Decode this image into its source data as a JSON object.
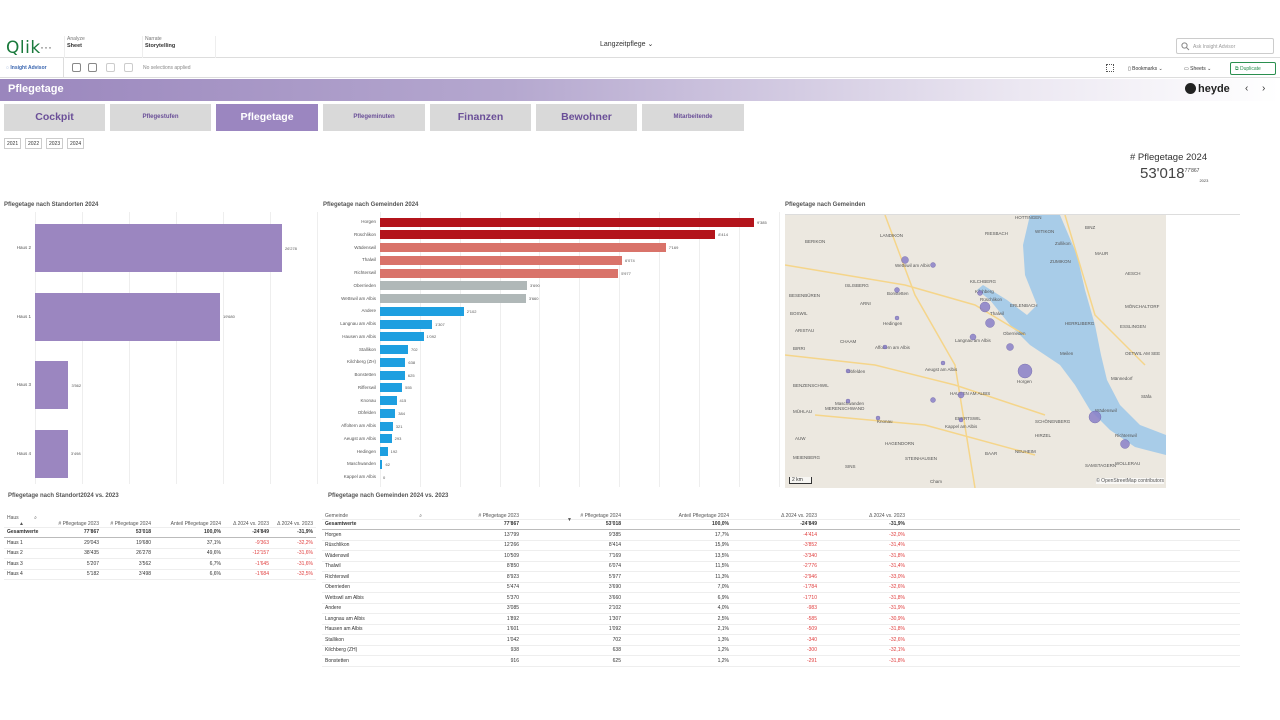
{
  "topbar": {
    "logo": "Qlik",
    "more": "···",
    "tab1_top": "Analyze",
    "tab1_bottom": "Sheet",
    "tab2_top": "Narrate",
    "tab2_bottom": "Storytelling",
    "app_title": "Langzeitpflege",
    "search_placeholder": "Ask Insight Advisor"
  },
  "toolbar": {
    "insight_advisor": "Insight Advisor",
    "no_selections": "No selections applied",
    "bookmarks": "Bookmarks",
    "sheets": "Sheets",
    "duplicate": "Duplicate"
  },
  "sheet": {
    "title": "Pflegetage",
    "brand": "heyde"
  },
  "nav": [
    "Cockpit",
    "Pflegestufen",
    "Pflegetage",
    "Pflegeminuten",
    "Finanzen",
    "Bewohner",
    "Mitarbeitende"
  ],
  "years": [
    "2021",
    "2022",
    "2023",
    "2024"
  ],
  "kpi": {
    "title": "# Pflegetage 2024",
    "value": "53'018",
    "prev": "77'867",
    "prev_year": "2023"
  },
  "chart_data": [
    {
      "type": "bar",
      "title": "Pflegetage nach Standorten 2024",
      "categories": [
        "Haus 2",
        "Haus 1",
        "Haus 3",
        "Haus 4"
      ],
      "values": [
        26278,
        19680,
        3562,
        3498
      ],
      "labels": [
        "26'278",
        "19'680",
        "3'562",
        "3'498"
      ],
      "color": "#9b86c0"
    },
    {
      "type": "bar",
      "title": "Pflegetage nach Gemeinden 2024",
      "categories": [
        "Horgen",
        "Rüschlikon",
        "Wädenswil",
        "Thalwil",
        "Richterswil",
        "Oberrieden",
        "Wettswil am Albis",
        "Andere",
        "Langnau am Albis",
        "Hausen am Albis",
        "Stallikon",
        "Kilchberg (ZH)",
        "Bonstetten",
        "Rifferswil",
        "Knonau",
        "Obfelden",
        "Affoltern am Albis",
        "Aeugst am Albis",
        "Hedingen",
        "Maschwanden",
        "Kappel am Albis"
      ],
      "values": [
        9385,
        8414,
        7169,
        6074,
        5977,
        3690,
        3660,
        2102,
        1307,
        1092,
        702,
        638,
        625,
        555,
        415,
        384,
        321,
        293,
        192,
        62,
        0
      ],
      "labels": [
        "9'385",
        "8'414",
        "7'169",
        "6'074",
        "5'977",
        "3'690",
        "3'660",
        "2'102",
        "1'307",
        "1'092",
        "702",
        "638",
        "625",
        "555",
        "415",
        "384",
        "321",
        "293",
        "192",
        "62",
        "0"
      ],
      "colors": [
        "#b3141b",
        "#b3141b",
        "#d9736a",
        "#d9736a",
        "#d9736a",
        "#b0b8b8",
        "#b0b8b8",
        "#1e9fe0",
        "#1e9fe0",
        "#1e9fe0",
        "#1e9fe0",
        "#1e9fe0",
        "#1e9fe0",
        "#1e9fe0",
        "#1e9fe0",
        "#1e9fe0",
        "#1e9fe0",
        "#1e9fe0",
        "#1e9fe0",
        "#1e9fe0",
        "#1e9fe0"
      ]
    }
  ],
  "map": {
    "title": "Pflegetage nach Gemeinden",
    "scale": "2 km",
    "attribution": "© OpenStreetMap contributors",
    "labels": [
      "HOTTINGEN",
      "RIESBACH",
      "WITIKON",
      "BINZ",
      "BERIKON",
      "LANDIKON",
      "ISLISBERG",
      "ARNI",
      "Zollikon",
      "ZUMIKON",
      "KILCHBERG",
      "Kilchberg",
      "Rüschlikon",
      "Thalwil",
      "Oberrieden",
      "Horgen",
      "Meilen",
      "ERLENBACH",
      "HERRLIBERG",
      "Wädenswil",
      "Richterswil",
      "Bonstetten",
      "Affoltern am Albis",
      "Hedingen",
      "Obfelden",
      "Aeugst am Albis",
      "Maschwanden",
      "Knonau",
      "Kappel am Albis",
      "Wettswil am Albis",
      "Langnau am Albis",
      "HIRZEL",
      "SCHÖNENBERG",
      "SAMSTAGERN",
      "WOLLERAU",
      "NEUHEIM",
      "BAAR",
      "Cham",
      "STEINHAUSEN",
      "EBERTSWIL",
      "HAUSEN AM ALBIS",
      "MAUR",
      "AESCH",
      "MÖNCHALTORF",
      "ESSLINGEN",
      "OETWIL AM SEE",
      "Männedorf",
      "Stäfa",
      "HAGENDORN",
      "MEIENBERG",
      "AUW",
      "SINS",
      "MÜHLAU",
      "BENZENSCHWIL",
      "MERENSCHWAND",
      "CHAAM",
      "BIRRI",
      "ARISTAU",
      "BESENBÜREN",
      "BOSWIL"
    ]
  },
  "table1": {
    "title": "Pflegetage nach Standort2024 vs. 2023",
    "headers": [
      "Haus",
      "# Pflegetage 2023",
      "# Pflegetage 2024",
      "Anteil Pflegetage 2024",
      "Δ 2024 vs. 2023",
      "Δ 2024 vs. 2023"
    ],
    "total": [
      "Gesamtwerte",
      "77'867",
      "53'018",
      "100,0%",
      "-24'849",
      "-31,9%"
    ],
    "rows": [
      [
        "Haus 1",
        "29'043",
        "19'680",
        "37,1%",
        "-9'363",
        "-32,2%"
      ],
      [
        "Haus 2",
        "38'435",
        "26'278",
        "49,6%",
        "-12'157",
        "-31,6%"
      ],
      [
        "Haus 3",
        "5'207",
        "3'562",
        "6,7%",
        "-1'645",
        "-31,6%"
      ],
      [
        "Haus 4",
        "5'182",
        "3'498",
        "6,6%",
        "-1'684",
        "-32,5%"
      ]
    ]
  },
  "table2": {
    "title": "Pflegetage nach Gemeinden 2024 vs. 2023",
    "headers": [
      "Gemeinde",
      "# Pflegetage 2023",
      "# Pflegetage 2024",
      "Anteil Pflegetage 2024",
      "Δ 2024 vs. 2023",
      "Δ 2024 vs. 2023"
    ],
    "total": [
      "Gesamtwerte",
      "77'867",
      "53'018",
      "100,0%",
      "-24'849",
      "-31,9%"
    ],
    "rows": [
      [
        "Horgen",
        "13'799",
        "9'385",
        "17,7%",
        "-4'414",
        "-32,0%"
      ],
      [
        "Rüschlikon",
        "12'266",
        "8'414",
        "15,9%",
        "-3'852",
        "-31,4%"
      ],
      [
        "Wädenswil",
        "10'509",
        "7'169",
        "13,5%",
        "-3'340",
        "-31,8%"
      ],
      [
        "Thalwil",
        "8'850",
        "6'074",
        "11,5%",
        "-2'776",
        "-31,4%"
      ],
      [
        "Richterswil",
        "8'923",
        "5'977",
        "11,3%",
        "-2'946",
        "-33,0%"
      ],
      [
        "Oberrieden",
        "5'474",
        "3'690",
        "7,0%",
        "-1'784",
        "-32,6%"
      ],
      [
        "Wettswil am Albis",
        "5'370",
        "3'660",
        "6,9%",
        "-1'710",
        "-31,8%"
      ],
      [
        "Andere",
        "3'085",
        "2'102",
        "4,0%",
        "-983",
        "-31,9%"
      ],
      [
        "Langnau am Albis",
        "1'892",
        "1'307",
        "2,5%",
        "-585",
        "-30,9%"
      ],
      [
        "Hausen am Albis",
        "1'601",
        "1'092",
        "2,1%",
        "-509",
        "-31,8%"
      ],
      [
        "Stallikon",
        "1'042",
        "702",
        "1,3%",
        "-340",
        "-32,6%"
      ],
      [
        "Kilchberg (ZH)",
        "938",
        "638",
        "1,2%",
        "-300",
        "-32,1%"
      ],
      [
        "Bonstetten",
        "916",
        "625",
        "1,2%",
        "-291",
        "-31,8%"
      ]
    ]
  }
}
